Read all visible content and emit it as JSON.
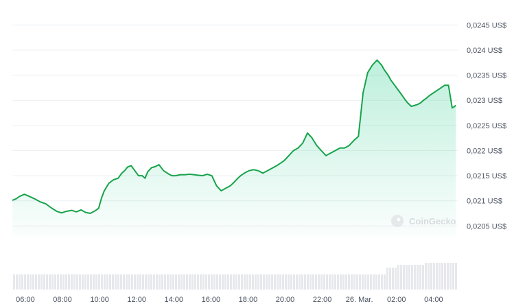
{
  "colors": {
    "line": "#16a34a",
    "fill_top": "#16c784",
    "grid": "#eceff2",
    "volume": "#e6e8ec",
    "tick_text": "#4a5260"
  },
  "watermark": {
    "text": "CoinGecko",
    "icon": "coingecko-logo-icon"
  },
  "chart_data": {
    "type": "area",
    "title": "",
    "xlabel": "",
    "ylabel": "",
    "ylim": [
      0.0203,
      0.02475
    ],
    "xlim": [
      5.3,
      29.3
    ],
    "y_ticks": [
      {
        "value": 0.0245,
        "label": "0,0245 US$"
      },
      {
        "value": 0.024,
        "label": "0,024 US$"
      },
      {
        "value": 0.0235,
        "label": "0,0235 US$"
      },
      {
        "value": 0.023,
        "label": "0,023 US$"
      },
      {
        "value": 0.0225,
        "label": "0,0225 US$"
      },
      {
        "value": 0.022,
        "label": "0,022 US$"
      },
      {
        "value": 0.0215,
        "label": "0,0215 US$"
      },
      {
        "value": 0.021,
        "label": "0,021 US$"
      },
      {
        "value": 0.0205,
        "label": "0,0205 US$"
      }
    ],
    "x_ticks": [
      {
        "value": 6,
        "label": "06:00"
      },
      {
        "value": 8,
        "label": "08:00"
      },
      {
        "value": 10,
        "label": "10:00"
      },
      {
        "value": 12,
        "label": "12:00"
      },
      {
        "value": 14,
        "label": "14:00"
      },
      {
        "value": 16,
        "label": "16:00"
      },
      {
        "value": 18,
        "label": "18:00"
      },
      {
        "value": 20,
        "label": "20:00"
      },
      {
        "value": 22,
        "label": "22:00"
      },
      {
        "value": 24,
        "label": "26. Mar."
      },
      {
        "value": 26,
        "label": "02:00"
      },
      {
        "value": 28,
        "label": "04:00"
      }
    ],
    "grid": true,
    "legend": "none",
    "series": [
      {
        "x": [
          5.3,
          5.5,
          5.7,
          5.95,
          6.2,
          6.5,
          6.8,
          7.1,
          7.4,
          7.7,
          7.95,
          8.2,
          8.5,
          8.75,
          9.0,
          9.25,
          9.5,
          9.75,
          9.95,
          10.1,
          10.25,
          10.5,
          10.75,
          11.0,
          11.2,
          11.35,
          11.5,
          11.7,
          11.9,
          12.1,
          12.3,
          12.45,
          12.6,
          12.8,
          13.0,
          13.2,
          13.45,
          13.7,
          13.9,
          14.1,
          14.35,
          14.6,
          14.85,
          15.1,
          15.3,
          15.55,
          15.8,
          16.05,
          16.3,
          16.55,
          16.8,
          17.05,
          17.25,
          17.45,
          17.6,
          17.8,
          18.05,
          18.3,
          18.55,
          18.8,
          19.05,
          19.3,
          19.55,
          19.75,
          19.95,
          20.2,
          20.45,
          20.7,
          20.95,
          21.2,
          21.45,
          21.7,
          21.95,
          22.2,
          22.45,
          22.7,
          22.95,
          23.2,
          23.45,
          23.7,
          23.95,
          24.2,
          24.45,
          24.7,
          24.95,
          25.2,
          25.35,
          25.45,
          25.55,
          25.7,
          25.9,
          26.1,
          26.3,
          26.45,
          26.6,
          26.8,
          27.0,
          27.15,
          27.3,
          27.45,
          27.6,
          27.8,
          28.0,
          28.2,
          28.4,
          28.6,
          28.8,
          29.0,
          29.1,
          29.2
        ],
        "y": [
          0.02101,
          0.02104,
          0.02109,
          0.02113,
          0.02109,
          0.02104,
          0.02098,
          0.02094,
          0.02086,
          0.02079,
          0.02076,
          0.02079,
          0.02081,
          0.02078,
          0.02082,
          0.02077,
          0.02075,
          0.0208,
          0.02085,
          0.02105,
          0.0212,
          0.02135,
          0.02142,
          0.02145,
          0.02155,
          0.0216,
          0.02167,
          0.0217,
          0.0216,
          0.0215,
          0.0215,
          0.02145,
          0.02158,
          0.02166,
          0.02168,
          0.02172,
          0.0216,
          0.02154,
          0.0215,
          0.0215,
          0.02152,
          0.02152,
          0.02153,
          0.02152,
          0.02151,
          0.0215,
          0.02153,
          0.0215,
          0.0213,
          0.0212,
          0.02125,
          0.0213,
          0.02137,
          0.02145,
          0.0215,
          0.02155,
          0.0216,
          0.02162,
          0.0216,
          0.02155,
          0.0216,
          0.02165,
          0.0217,
          0.02175,
          0.0218,
          0.0219,
          0.022,
          0.02205,
          0.02215,
          0.02235,
          0.02225,
          0.0221,
          0.022,
          0.0219,
          0.02195,
          0.022,
          0.02205,
          0.02205,
          0.0221,
          0.0222,
          0.02228,
          0.02315,
          0.02355,
          0.0237,
          0.0238,
          0.0237,
          0.0236,
          0.02355,
          0.0235,
          0.0234,
          0.0233,
          0.0232,
          0.0231,
          0.02302,
          0.02295,
          0.02288,
          0.0229,
          0.02292,
          0.02295,
          0.023,
          0.02304,
          0.0231,
          0.02315,
          0.0232,
          0.02325,
          0.0233,
          0.0233,
          0.02285,
          0.02287,
          0.0229
        ]
      }
    ],
    "volume_note": ""
  }
}
